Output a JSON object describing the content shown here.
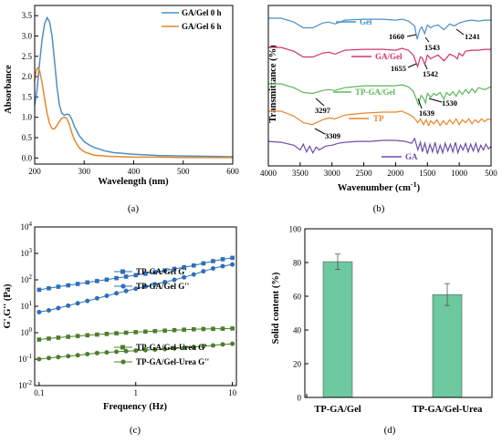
{
  "chart_data": [
    {
      "id": "a",
      "type": "line",
      "caption": "(a)",
      "xlabel": "Wavelength (nm)",
      "ylabel": "Absorbance",
      "xlim": [
        200,
        600
      ],
      "ylim": [
        -0.15,
        3.75
      ],
      "xticks": [
        "200",
        "300",
        "400",
        "500",
        "600"
      ],
      "yticks": [
        "0.0",
        "0.5",
        "1.0",
        "1.5",
        "2.0",
        "2.5",
        "3.0",
        "3.5"
      ],
      "legend_position": "top-right",
      "series": [
        {
          "name": "GA/Gel 0 h",
          "color": "#4a90c8",
          "x": [
            200,
            205,
            210,
            215,
            220,
            225,
            230,
            235,
            240,
            245,
            250,
            255,
            260,
            265,
            270,
            275,
            280,
            290,
            300,
            310,
            320,
            340,
            360,
            400,
            450,
            500,
            550,
            600
          ],
          "y": [
            1.3,
            1.7,
            2.35,
            2.9,
            3.3,
            3.45,
            3.35,
            3.0,
            2.4,
            1.75,
            1.3,
            1.1,
            1.05,
            1.08,
            1.06,
            0.95,
            0.78,
            0.55,
            0.4,
            0.32,
            0.26,
            0.18,
            0.13,
            0.09,
            0.06,
            0.05,
            0.04,
            0.03
          ]
        },
        {
          "name": "GA/Gel 6 h",
          "color": "#e8872a",
          "x": [
            200,
            203,
            206,
            210,
            215,
            220,
            225,
            230,
            235,
            240,
            245,
            250,
            255,
            260,
            265,
            270,
            275,
            280,
            290,
            300,
            320,
            350,
            400,
            450,
            500,
            600
          ],
          "y": [
            1.9,
            2.15,
            2.22,
            2.15,
            1.85,
            1.45,
            1.1,
            0.85,
            0.72,
            0.72,
            0.8,
            0.9,
            0.98,
            1.0,
            0.97,
            0.82,
            0.62,
            0.45,
            0.25,
            0.15,
            0.07,
            0.04,
            0.02,
            0.02,
            0.01,
            0.01
          ]
        }
      ]
    },
    {
      "id": "b",
      "type": "line",
      "caption": "(b)",
      "xlabel": "Wavenumber (cm",
      "xlabel_sup": "-1",
      "xlabel_end": ")",
      "ylabel": "Transmittance (%)",
      "xlim": [
        4000,
        500
      ],
      "xticks": [
        "4000",
        "3500",
        "3000",
        "2500",
        "2000",
        "1500",
        "1000",
        "500"
      ],
      "series": [
        {
          "name": "Gel",
          "color": "#4a90c8",
          "offset": 0,
          "x": [
            4000,
            3800,
            3600,
            3450,
            3300,
            3150,
            3050,
            2950,
            2800,
            2500,
            2200,
            2000,
            1900,
            1800,
            1700,
            1660,
            1620,
            1590,
            1543,
            1500,
            1450,
            1400,
            1330,
            1241,
            1150,
            1080,
            1000,
            900,
            800,
            700,
            600,
            500
          ],
          "y": [
            0,
            0,
            -4,
            -10,
            -10,
            -5,
            -4,
            -6,
            -2,
            -1,
            -1,
            -2,
            -1,
            -3,
            -8,
            -22,
            -12,
            -9,
            -16,
            -7,
            -10,
            -8,
            -7,
            -12,
            -6,
            -8,
            -5,
            -3,
            -2,
            -3,
            -2,
            -2
          ]
        },
        {
          "name": "GA/Gel",
          "color": "#d6336c",
          "offset": 28,
          "x": [
            4000,
            3800,
            3600,
            3450,
            3300,
            3150,
            3050,
            2950,
            2800,
            2500,
            2200,
            2000,
            1900,
            1800,
            1720,
            1655,
            1610,
            1580,
            1542,
            1500,
            1450,
            1400,
            1330,
            1240,
            1150,
            1080,
            1030,
            1000,
            950,
            900,
            800,
            700,
            600,
            500
          ],
          "y": [
            0,
            0,
            -4,
            -10,
            -10,
            -6,
            -5,
            -7,
            -3,
            -2,
            -2,
            -3,
            -1,
            -3,
            -8,
            -20,
            -10,
            -11,
            -18,
            -8,
            -12,
            -10,
            -8,
            -14,
            -7,
            -9,
            -12,
            -6,
            -9,
            -4,
            -3,
            -3,
            -2,
            -2
          ]
        },
        {
          "name": "TP-GA/Gel",
          "color": "#5cb85c",
          "offset": 65,
          "x": [
            4000,
            3800,
            3600,
            3450,
            3297,
            3150,
            3050,
            2950,
            2800,
            2500,
            2200,
            2000,
            1900,
            1800,
            1720,
            1639,
            1600,
            1560,
            1530,
            1500,
            1450,
            1400,
            1360,
            1300,
            1240,
            1200,
            1150,
            1100,
            1050,
            1000,
            950,
            900,
            850,
            800,
            750,
            700,
            600,
            500
          ],
          "y": [
            0,
            0,
            -4,
            -9,
            -10,
            -7,
            -6,
            -7,
            -4,
            -2,
            -2,
            -2,
            -1,
            -3,
            -8,
            -22,
            -12,
            -15,
            -20,
            -10,
            -14,
            -10,
            -12,
            -9,
            -16,
            -9,
            -12,
            -8,
            -13,
            -7,
            -11,
            -6,
            -10,
            -5,
            -9,
            -4,
            -6,
            -3
          ]
        },
        {
          "name": "TP",
          "color": "#e8872a",
          "offset": 100,
          "x": [
            4000,
            3800,
            3600,
            3450,
            3309,
            3150,
            3050,
            2950,
            2800,
            2500,
            2200,
            2000,
            1900,
            1800,
            1720,
            1650,
            1610,
            1560,
            1520,
            1480,
            1450,
            1400,
            1350,
            1300,
            1250,
            1200,
            1150,
            1100,
            1050,
            1000,
            950,
            900,
            850,
            800,
            750,
            700,
            650,
            600,
            550,
            500
          ],
          "y": [
            0,
            0,
            -5,
            -12,
            -14,
            -9,
            -7,
            -8,
            -4,
            -2,
            -1,
            -1,
            0,
            -3,
            -6,
            -12,
            -8,
            -14,
            -9,
            -15,
            -10,
            -13,
            -9,
            -15,
            -10,
            -14,
            -9,
            -13,
            -8,
            -14,
            -9,
            -12,
            -8,
            -13,
            -9,
            -12,
            -8,
            -11,
            -8,
            -9
          ]
        },
        {
          "name": "GA",
          "color": "#6b4fa8",
          "offset": 140,
          "x": [
            4000,
            3800,
            3600,
            3500,
            3450,
            3400,
            3350,
            3300,
            3250,
            3200,
            3100,
            3000,
            2900,
            2800,
            2600,
            2400,
            2200,
            2000,
            1850,
            1750,
            1700,
            1650,
            1610,
            1580,
            1540,
            1500,
            1460,
            1420,
            1380,
            1340,
            1300,
            1260,
            1220,
            1180,
            1140,
            1100,
            1060,
            1020,
            980,
            940,
            900,
            860,
            820,
            780,
            740,
            700,
            660,
            620,
            580,
            540,
            500
          ],
          "y": [
            -1,
            -2,
            -5,
            -10,
            -4,
            -12,
            -6,
            -13,
            -7,
            -10,
            -6,
            -5,
            -3,
            -2,
            -1,
            -1,
            0,
            0,
            -1,
            -3,
            2,
            -10,
            -2,
            -12,
            -3,
            -14,
            -4,
            -12,
            -2,
            -14,
            -5,
            -13,
            -3,
            -11,
            -4,
            -12,
            -2,
            -13,
            -5,
            -10,
            -3,
            -12,
            -4,
            -11,
            -3,
            -12,
            -5,
            -10,
            -4,
            -9,
            -6
          ]
        }
      ],
      "annotations": [
        "1660",
        "1543",
        "1241",
        "1655",
        "1542",
        "3297",
        "1639",
        "1530",
        "3309"
      ]
    },
    {
      "id": "c",
      "type": "line",
      "caption": "(c)",
      "xlabel": "Frequency (Hz)",
      "ylabel": "G',G'' (Pa)",
      "x_scale": "log",
      "y_scale": "log",
      "xlim": [
        0.09,
        11
      ],
      "ylim": [
        0.01,
        10000
      ],
      "xticks": [
        "0.1",
        "1",
        "10"
      ],
      "ytick_base": "10",
      "ytick_exps": [
        "-2",
        "-1",
        "0",
        "1",
        "2",
        "3",
        "4"
      ],
      "series": [
        {
          "name": "TP-GA/Gel G'",
          "color": "#2e6fb8",
          "marker": "square",
          "x": [
            0.1,
            0.126,
            0.158,
            0.2,
            0.251,
            0.316,
            0.398,
            0.501,
            0.631,
            0.794,
            1,
            1.26,
            1.58,
            2,
            2.51,
            3.16,
            3.98,
            5.01,
            6.31,
            7.94,
            10
          ],
          "y": [
            42,
            48,
            55,
            62,
            70,
            80,
            90,
            102,
            116,
            132,
            150,
            170,
            195,
            225,
            260,
            300,
            350,
            420,
            510,
            600,
            680
          ]
        },
        {
          "name": "TP-GA/Gel G''",
          "color": "#2e6fb8",
          "marker": "circle",
          "x": [
            0.1,
            0.126,
            0.158,
            0.2,
            0.251,
            0.316,
            0.398,
            0.501,
            0.631,
            0.794,
            1,
            1.26,
            1.58,
            2,
            2.51,
            3.16,
            3.98,
            5.01,
            6.31,
            7.94,
            10
          ],
          "y": [
            6,
            7,
            8.5,
            10.5,
            13,
            16,
            20,
            25,
            31,
            38,
            46,
            56,
            68,
            82,
            100,
            125,
            160,
            210,
            270,
            330,
            380
          ]
        },
        {
          "name": "TP-GA/Gel-Urea G'",
          "color": "#4e7d2a",
          "marker": "square",
          "x": [
            0.1,
            0.126,
            0.158,
            0.2,
            0.251,
            0.316,
            0.398,
            0.501,
            0.631,
            0.794,
            1,
            1.26,
            1.58,
            2,
            2.51,
            3.16,
            3.98,
            5.01,
            6.31,
            7.94,
            10
          ],
          "y": [
            0.55,
            0.6,
            0.65,
            0.7,
            0.75,
            0.8,
            0.85,
            0.9,
            0.95,
            1.0,
            1.05,
            1.1,
            1.15,
            1.2,
            1.25,
            1.3,
            1.35,
            1.38,
            1.4,
            1.42,
            1.45
          ]
        },
        {
          "name": "TP-GA/Gel-Urea G''",
          "color": "#4e7d2a",
          "marker": "circle",
          "x": [
            0.1,
            0.126,
            0.158,
            0.2,
            0.251,
            0.316,
            0.398,
            0.501,
            0.631,
            0.794,
            1,
            1.26,
            1.58,
            2,
            2.51,
            3.16,
            3.98,
            5.01,
            6.31,
            7.94,
            10
          ],
          "y": [
            0.1,
            0.11,
            0.12,
            0.13,
            0.14,
            0.155,
            0.17,
            0.18,
            0.19,
            0.2,
            0.21,
            0.22,
            0.23,
            0.24,
            0.255,
            0.27,
            0.29,
            0.31,
            0.33,
            0.36,
            0.38
          ]
        }
      ]
    },
    {
      "id": "d",
      "type": "bar",
      "caption": "(d)",
      "ylabel": "Solid content (%)",
      "categories": [
        "TP-GA/Gel",
        "TP-GA/Gel-Urea"
      ],
      "values": [
        80.5,
        61
      ],
      "errors": [
        4.5,
        6.5
      ],
      "ylim": [
        0,
        100
      ],
      "yticks": [
        "0",
        "20",
        "40",
        "60",
        "80",
        "100"
      ],
      "bar_color": "#6cc9a0"
    }
  ]
}
